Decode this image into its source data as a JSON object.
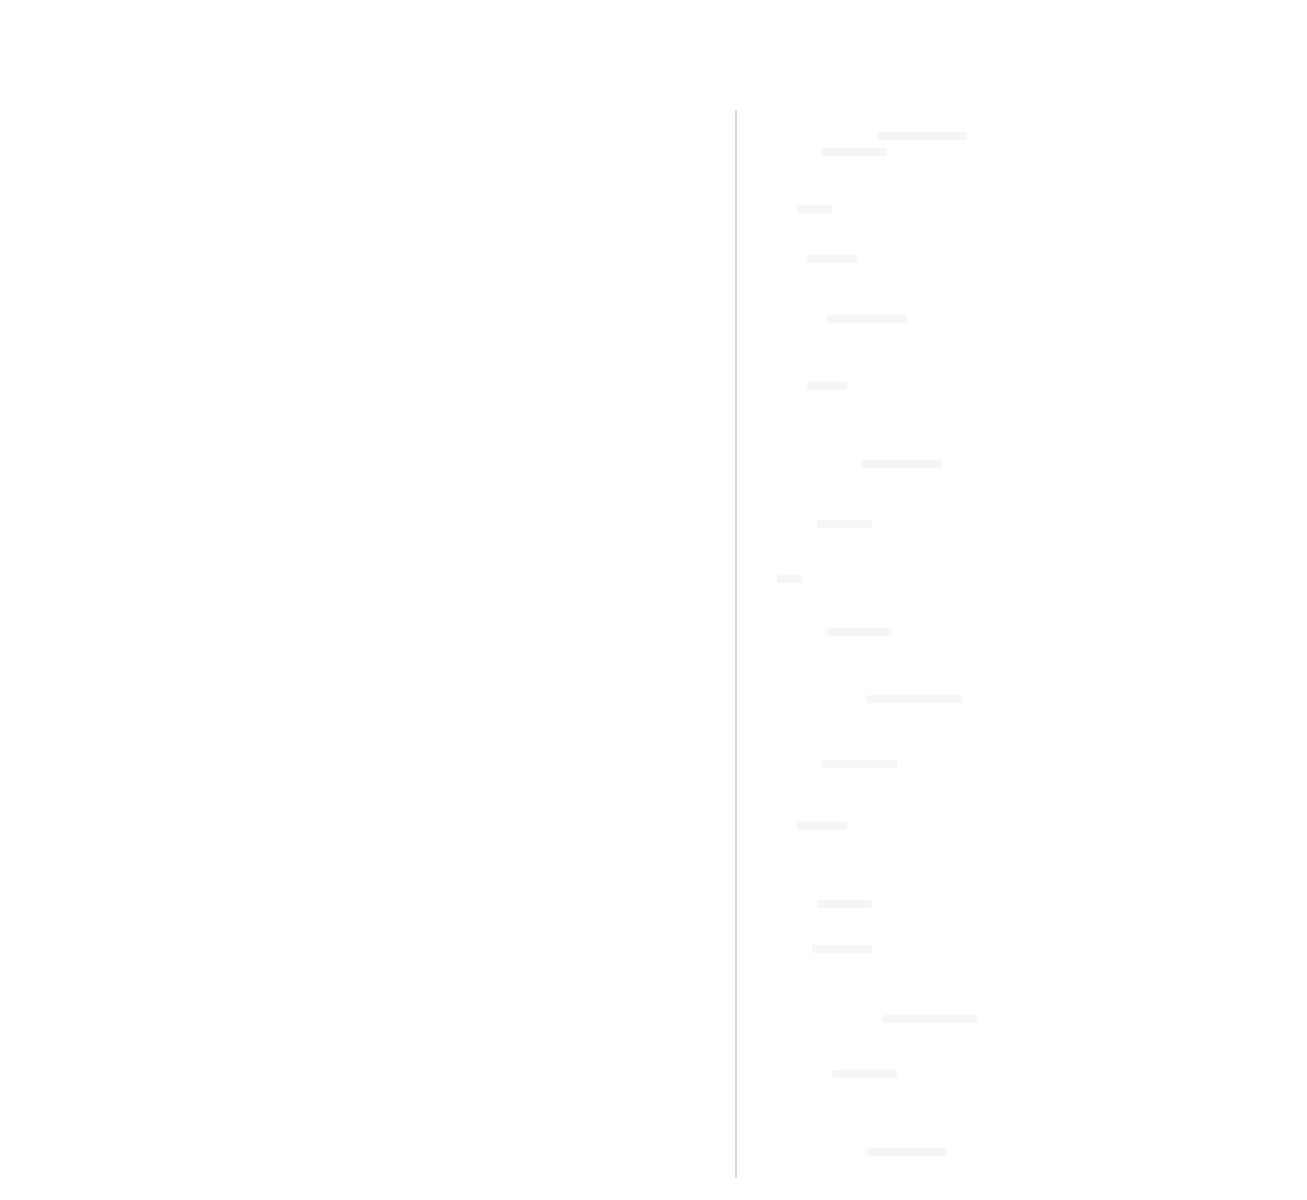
{
  "app": {
    "title": ""
  },
  "left_pane": {
    "content": ""
  },
  "right_pane": {
    "items": []
  }
}
